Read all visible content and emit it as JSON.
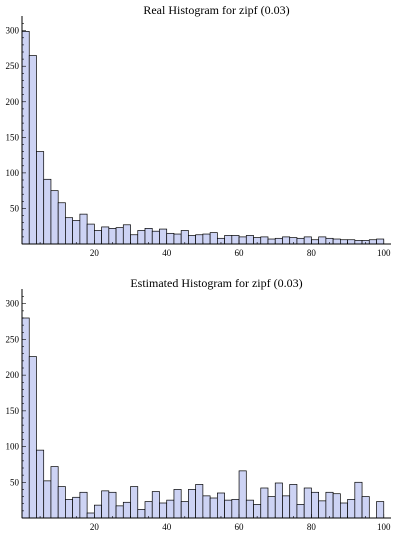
{
  "colors": {
    "bar_fill": "#cdd3f4",
    "bar_stroke": "#000000",
    "axis": "#000000"
  },
  "chart_data": [
    {
      "type": "bar",
      "title": "Real Histogram for zipf (0.03)",
      "xlabel": "",
      "ylabel": "",
      "xlim": [
        0,
        102
      ],
      "ylim": [
        0,
        315
      ],
      "bin_width": 2,
      "x_ticks": [
        20,
        40,
        60,
        80,
        100
      ],
      "y_ticks": [
        50,
        100,
        150,
        200,
        250,
        300
      ],
      "grid": false,
      "x": [
        0,
        2,
        4,
        6,
        8,
        10,
        12,
        14,
        16,
        18,
        20,
        22,
        24,
        26,
        28,
        30,
        32,
        34,
        36,
        38,
        40,
        42,
        44,
        46,
        48,
        50,
        52,
        54,
        56,
        58,
        60,
        62,
        64,
        66,
        68,
        70,
        72,
        74,
        76,
        78,
        80,
        82,
        84,
        86,
        88,
        90,
        92,
        94,
        96,
        98
      ],
      "values": [
        299,
        265,
        130,
        91,
        75,
        58,
        37,
        33,
        42,
        28,
        19,
        24,
        22,
        23,
        27,
        13,
        19,
        22,
        18,
        21,
        15,
        14,
        19,
        12,
        13,
        14,
        16,
        8,
        12,
        12,
        10,
        12,
        9,
        10,
        7,
        8,
        10,
        9,
        8,
        10,
        6,
        10,
        8,
        7,
        6,
        6,
        5,
        5,
        6,
        7
      ]
    },
    {
      "type": "bar",
      "title": "Estimated Histogram for zipf (0.03)",
      "xlabel": "",
      "ylabel": "",
      "xlim": [
        0,
        102
      ],
      "ylim": [
        0,
        315
      ],
      "bin_width": 2,
      "x_ticks": [
        20,
        40,
        60,
        80,
        100
      ],
      "y_ticks": [
        50,
        100,
        150,
        200,
        250,
        300
      ],
      "grid": false,
      "x": [
        0,
        2,
        4,
        6,
        8,
        10,
        12,
        14,
        16,
        18,
        20,
        22,
        24,
        26,
        28,
        30,
        32,
        34,
        36,
        38,
        40,
        42,
        44,
        46,
        48,
        50,
        52,
        54,
        56,
        58,
        60,
        62,
        64,
        66,
        68,
        70,
        72,
        74,
        76,
        78,
        80,
        82,
        84,
        86,
        88,
        90,
        92,
        94,
        96,
        98
      ],
      "values": [
        280,
        226,
        95,
        52,
        72,
        44,
        26,
        29,
        36,
        7,
        18,
        38,
        36,
        17,
        22,
        44,
        12,
        23,
        37,
        21,
        25,
        40,
        23,
        40,
        47,
        31,
        28,
        35,
        25,
        26,
        66,
        25,
        19,
        42,
        30,
        49,
        31,
        47,
        19,
        42,
        36,
        24,
        36,
        34,
        21,
        26,
        50,
        30,
        0,
        23
      ]
    }
  ]
}
